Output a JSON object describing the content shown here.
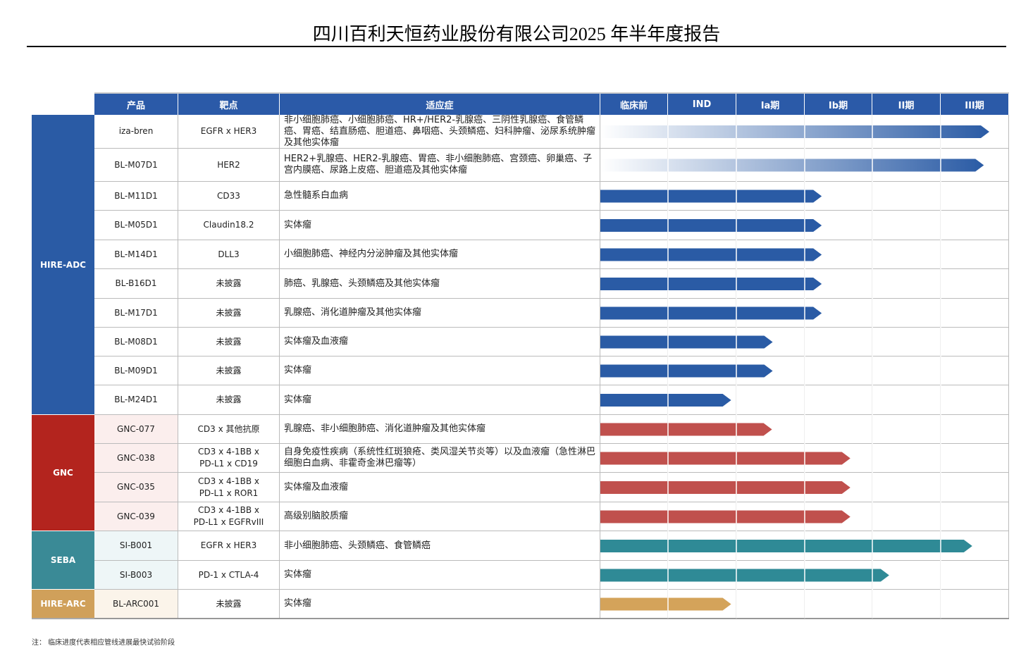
{
  "header": {
    "title": "四川百利天恒药业股份有限公司2025 年半年度报告"
  },
  "table": {
    "columns": [
      "产品",
      "靶点",
      "适应症",
      "临床前",
      "IND",
      "Ia期",
      "Ib期",
      "II期",
      "III期"
    ],
    "groups": [
      {
        "name": "HIRE-ADC",
        "color": "#2a5ba5",
        "cell_color": "#ffffff",
        "arrow_color": "#2a5ba5",
        "rows": [
          {
            "product": "iza-bren",
            "target": "EGFR x HER3",
            "indication": "非小细胞肺癌、小细胞肺癌、HR+/HER2-乳腺癌、三阴性乳腺癌、食管鳞癌、胃癌、结直肠癌、胆道癌、鼻咽癌、头颈鳞癌、妇科肿瘤、泌尿系统肿瘤及其他实体瘤",
            "progress": 5.71,
            "gradient": true
          },
          {
            "product": "BL-M07D1",
            "target": "HER2",
            "indication": "HER2+乳腺癌、HER2-乳腺癌、胃癌、非小细胞肺癌、宫颈癌、卵巢癌、子宫内膜癌、尿路上皮癌、胆道癌及其他实体瘤",
            "progress": 5.63,
            "gradient": true
          },
          {
            "product": "BL-M11D1",
            "target": "CD33",
            "indication": "急性髓系白血病",
            "progress": 3.25
          },
          {
            "product": "BL-M05D1",
            "target": "Claudin18.2",
            "indication": "实体瘤",
            "progress": 3.25
          },
          {
            "product": "BL-M14D1",
            "target": "DLL3",
            "indication": "小细胞肺癌、神经内分泌肿瘤及其他实体瘤",
            "progress": 3.25
          },
          {
            "product": "BL-B16D1",
            "target": "未披露",
            "indication": "肺癌、乳腺癌、头颈鳞癌及其他实体瘤",
            "progress": 3.25
          },
          {
            "product": "BL-M17D1",
            "target": "未披露",
            "indication": "乳腺癌、消化道肿瘤及其他实体瘤",
            "progress": 3.25
          },
          {
            "product": "BL-M08D1",
            "target": "未披露",
            "indication": "实体瘤及血液瘤",
            "progress": 2.53
          },
          {
            "product": "BL-M09D1",
            "target": "未披露",
            "indication": "实体瘤",
            "progress": 2.53
          },
          {
            "product": "BL-M24D1",
            "target": "未披露",
            "indication": "实体瘤",
            "progress": 1.92
          }
        ]
      },
      {
        "name": "GNC",
        "color": "#b3241e",
        "cell_color": "#fbeeed",
        "arrow_color": "#c0504d",
        "rows": [
          {
            "product": "GNC-077",
            "target": "CD3 x 其他抗原",
            "indication": "乳腺癌、非小细胞肺癌、消化道肿瘤及其他实体瘤",
            "progress": 2.52
          },
          {
            "product": "GNC-038",
            "target": "CD3 x 4-1BB x\nPD-L1 x CD19",
            "indication": "自身免疫性疾病（系统性红斑狼疮、类风湿关节炎等）以及血液瘤（急性淋巴细胞白血病、非霍奇金淋巴瘤等）",
            "progress": 3.67
          },
          {
            "product": "GNC-035",
            "target": "CD3 x 4-1BB x\nPD-L1 x ROR1",
            "indication": "实体瘤及血液瘤",
            "progress": 3.67
          },
          {
            "product": "GNC-039",
            "target": "CD3 x 4-1BB x\nPD-L1 x EGFRvIII",
            "indication": "高级别脑胶质瘤",
            "progress": 3.67
          }
        ]
      },
      {
        "name": "SEBA",
        "color": "#3a8a96",
        "cell_color": "#eef6f7",
        "arrow_color": "#2f8a96",
        "rows": [
          {
            "product": "SI-B001",
            "target": "EGFR x HER3",
            "indication": "非小细胞肺癌、头颈鳞癌、食管鳞癌",
            "progress": 5.46
          },
          {
            "product": "SI-B003",
            "target": "PD-1 x CTLA-4",
            "indication": "实体瘤",
            "progress": 4.24
          }
        ]
      },
      {
        "name": "HIRE-ARC",
        "color": "#d0a05a",
        "cell_color": "#fbf4ea",
        "arrow_color": "#d4a35a",
        "rows": [
          {
            "product": "BL-ARC001",
            "target": "未披露",
            "indication": "实体瘤",
            "progress": 1.92
          }
        ]
      }
    ]
  },
  "note": "注： 临床进度代表相应管线进展最快试验阶段"
}
